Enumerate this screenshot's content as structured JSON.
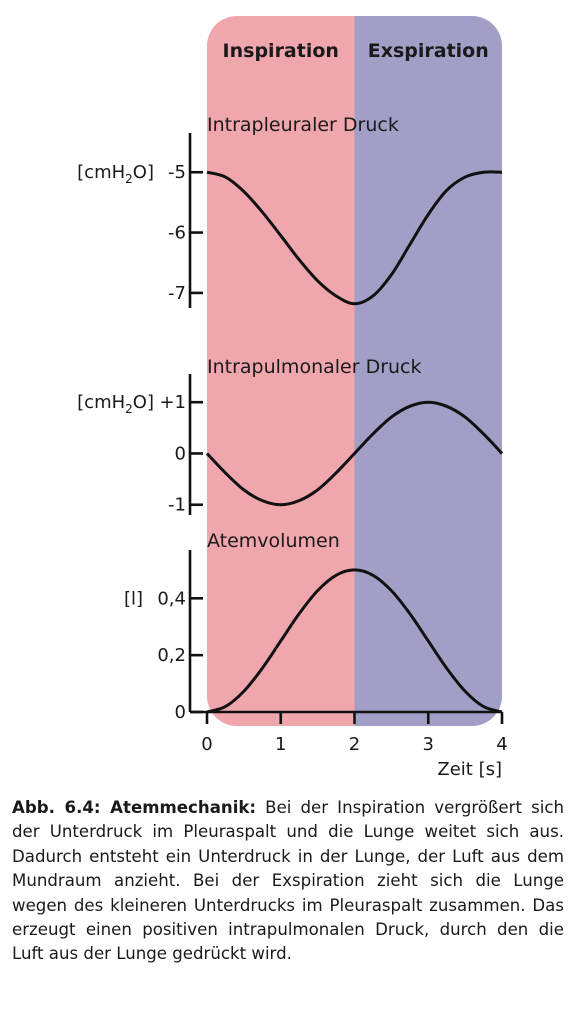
{
  "chart_data": {
    "type": "line",
    "phases": [
      {
        "label": "Inspiration",
        "x_range": [
          0,
          2
        ],
        "color": "#f0a6ad"
      },
      {
        "label": "Exspiration",
        "x_range": [
          2,
          4
        ],
        "color": "#a29fc6"
      }
    ],
    "x_axis": {
      "label": "Zeit [s]",
      "range": [
        0,
        4
      ],
      "ticks": [
        0,
        1,
        2,
        3,
        4
      ],
      "tick_labels": [
        "0",
        "1",
        "2",
        "3",
        "4"
      ]
    },
    "panels": [
      {
        "title": "Intrapleuraler Druck",
        "unit_main": "[cmH",
        "unit_sub": "2",
        "unit_end": "O]",
        "ylim": [
          -7.25,
          -4.35
        ],
        "ticks": [
          -5,
          -6,
          -7
        ],
        "tick_labels": [
          "-5",
          "-6",
          "-7"
        ],
        "series": {
          "x": [
            0,
            0.25,
            0.5,
            0.75,
            1,
            1.25,
            1.5,
            1.75,
            2,
            2.25,
            2.5,
            2.75,
            3,
            3.25,
            3.5,
            3.75,
            4
          ],
          "y": [
            -5.0,
            -5.08,
            -5.32,
            -5.66,
            -6.05,
            -6.45,
            -6.8,
            -7.05,
            -7.18,
            -7.05,
            -6.7,
            -6.2,
            -5.7,
            -5.3,
            -5.08,
            -5.0,
            -5.0
          ]
        }
      },
      {
        "title": "Intrapulmonaler Druck",
        "unit_main": "[cmH",
        "unit_sub": "2",
        "unit_end": "O]",
        "ylim": [
          -1.2,
          1.55
        ],
        "ticks": [
          1,
          0,
          -1
        ],
        "tick_labels": [
          "+1",
          "0",
          "-1"
        ],
        "series": {
          "x": [
            0,
            0.25,
            0.5,
            0.75,
            1,
            1.25,
            1.5,
            1.75,
            2,
            2.25,
            2.5,
            2.75,
            3,
            3.25,
            3.5,
            3.75,
            4
          ],
          "y": [
            0,
            -0.38,
            -0.71,
            -0.92,
            -1.0,
            -0.92,
            -0.71,
            -0.38,
            0,
            0.38,
            0.71,
            0.92,
            1.0,
            0.92,
            0.71,
            0.38,
            0
          ]
        }
      },
      {
        "title": "Atemvolumen",
        "unit_main": "[l]",
        "unit_sub": "",
        "unit_end": "",
        "ylim": [
          0,
          0.57
        ],
        "ticks": [
          0.4,
          0.2,
          0
        ],
        "tick_labels": [
          "0,4",
          "0,2",
          "0"
        ],
        "series": {
          "x": [
            0,
            0.25,
            0.5,
            0.75,
            1,
            1.25,
            1.5,
            1.75,
            2,
            2.25,
            2.5,
            2.75,
            3,
            3.25,
            3.5,
            3.75,
            4
          ],
          "y": [
            0,
            0.019,
            0.073,
            0.154,
            0.25,
            0.346,
            0.427,
            0.481,
            0.5,
            0.481,
            0.427,
            0.346,
            0.25,
            0.154,
            0.073,
            0.019,
            0
          ]
        }
      }
    ]
  },
  "caption": {
    "label": "Abb. 6.4: Atemmechanik:",
    "text": " Bei der Inspiration vergrößert sich der Unterdruck im Pleuraspalt und die Lunge weitet sich aus. Dadurch entsteht ein Unterdruck in der Lunge, der Luft aus dem Mundraum anzieht. Bei der Exspiration zieht sich die Lunge wegen des kleineren Unterdrucks im Pleuraspalt zusammen. Das erzeugt einen positiven intrapulmonalen Druck, durch den die Luft aus der Lunge gedrückt wird."
  }
}
